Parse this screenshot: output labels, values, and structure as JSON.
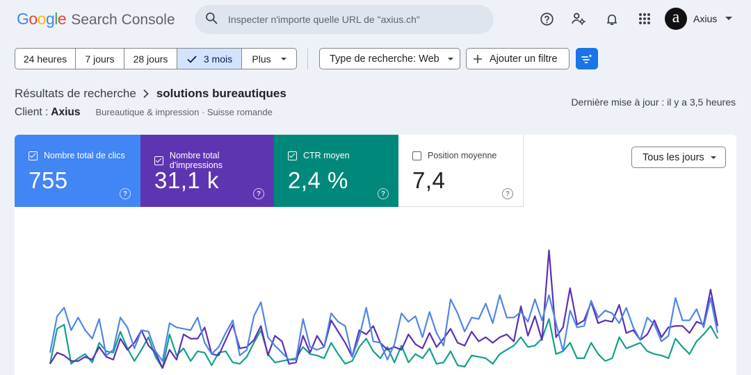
{
  "header": {
    "logo_google": "Google",
    "logo_product": "Search Console",
    "search_placeholder": "Inspecter n'importe quelle URL de \"axius.ch\"",
    "account_initial": "a",
    "account_name": "Axius",
    "icons": [
      "help-icon",
      "manage-users-icon",
      "notifications-icon",
      "apps-icon"
    ]
  },
  "toolbar": {
    "ranges": [
      {
        "label": "24 heures",
        "selected": false
      },
      {
        "label": "7 jours",
        "selected": false
      },
      {
        "label": "28 jours",
        "selected": false
      },
      {
        "label": "3 mois",
        "selected": true
      },
      {
        "label": "Plus",
        "selected": false
      }
    ],
    "search_type": "Type de recherche: Web",
    "add_filter": "Ajouter un filtre"
  },
  "breadcrumb": {
    "parent": "Résultats de recherche",
    "current": "solutions bureautiques"
  },
  "client": {
    "label": "Client :",
    "name": "Axius",
    "meta": "Bureautique & impression · Suisse romande"
  },
  "last_update": "Dernière mise à jour : il y a 3,5 heures",
  "metrics": [
    {
      "label": "Nombre total de clics",
      "value": "755",
      "checked": true,
      "color": "#4285f4"
    },
    {
      "label": "Nombre total d'impressions",
      "value": "31,1 k",
      "checked": true,
      "color": "#5e35b1"
    },
    {
      "label": "CTR moyen",
      "value": "2,4 %",
      "checked": true,
      "color": "#00897b"
    },
    {
      "label": "Position moyenne",
      "value": "7,4",
      "checked": false,
      "color": "#ffffff"
    }
  ],
  "granularity": "Tous les jours",
  "chart_data": {
    "type": "line",
    "series": [
      {
        "name": "Nombre total de clics",
        "color": "#4e86e6",
        "values": [
          11,
          37,
          43,
          27,
          36,
          27,
          21,
          35,
          9,
          13,
          36,
          29,
          14,
          27,
          26,
          12,
          5,
          32,
          29,
          28,
          27,
          36,
          18,
          10,
          15,
          25,
          34,
          9,
          13,
          37,
          47,
          22,
          16,
          11,
          6,
          6,
          35,
          15,
          13,
          15,
          39,
          33,
          30,
          8,
          22,
          43,
          19,
          18,
          6,
          17,
          39,
          33,
          37,
          22,
          40,
          25,
          16,
          49,
          39,
          26,
          36,
          35,
          46,
          32,
          52,
          36,
          36,
          40,
          33,
          49,
          34,
          52,
          32,
          12,
          41,
          29,
          30,
          48,
          36,
          41,
          39,
          32,
          43,
          29,
          20,
          36,
          31,
          19,
          23,
          50,
          34,
          34,
          42,
          29,
          50,
          25
        ]
      },
      {
        "name": "Nombre total d'impressions",
        "color": "#5c2fb5",
        "values": [
          3,
          11,
          9,
          5,
          5,
          8,
          6,
          15,
          8,
          6,
          21,
          13,
          18,
          27,
          16,
          11,
          0,
          13,
          6,
          24,
          21,
          21,
          29,
          10,
          9,
          20,
          31,
          14,
          15,
          20,
          30,
          9,
          23,
          19,
          3,
          4,
          23,
          11,
          23,
          15,
          34,
          26,
          18,
          8,
          27,
          24,
          30,
          18,
          13,
          15,
          13,
          24,
          17,
          14,
          25,
          15,
          21,
          28,
          18,
          16,
          26,
          19,
          22,
          18,
          22,
          24,
          19,
          44,
          23,
          37,
          20,
          84,
          22,
          29,
          57,
          31,
          34,
          47,
          32,
          34,
          33,
          45,
          25,
          27,
          20,
          24,
          34,
          22,
          29,
          30,
          30,
          25,
          33,
          31,
          56,
          30
        ]
      },
      {
        "name": "CTR moyen",
        "color": "#149f8a",
        "values": [
          3,
          28,
          31,
          3,
          7,
          10,
          4,
          18,
          12,
          11,
          26,
          14,
          5,
          13,
          22,
          8,
          0,
          24,
          9,
          14,
          5,
          12,
          11,
          2,
          11,
          12,
          4,
          3,
          8,
          18,
          27,
          10,
          4,
          5,
          6,
          7,
          15,
          10,
          9,
          7,
          18,
          10,
          3,
          5,
          15,
          21,
          12,
          7,
          15,
          4,
          16,
          4,
          10,
          7,
          14,
          3,
          4,
          12,
          2,
          1,
          9,
          8,
          7,
          3,
          10,
          13,
          16,
          22,
          15,
          16,
          21,
          35,
          10,
          12,
          18,
          7,
          7,
          18,
          10,
          5,
          7,
          22,
          14,
          16,
          18,
          12,
          10,
          9,
          7,
          21,
          15,
          10,
          19,
          24,
          30,
          21
        ]
      }
    ],
    "ylim": [
      0,
      100
    ],
    "grid": false,
    "legend": "none"
  }
}
